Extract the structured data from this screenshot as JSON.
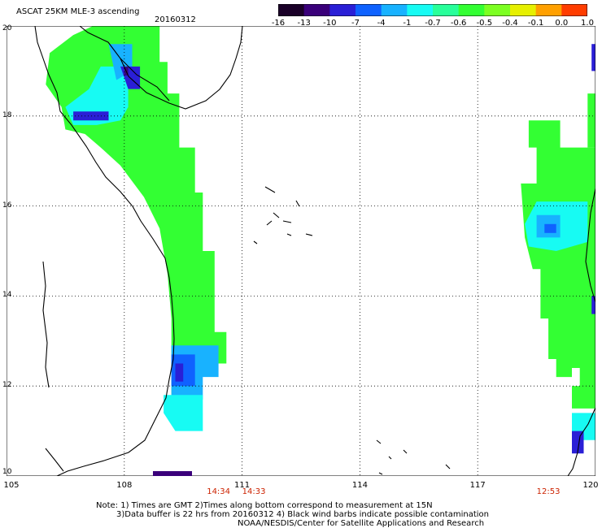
{
  "header": {
    "title": "ASCAT 25KM MLE-3 ascending",
    "date": "20160312"
  },
  "colorbar": {
    "colors": [
      "#1a0028",
      "#3a007a",
      "#2a1fd6",
      "#0f62ff",
      "#18b2ff",
      "#17fbf3",
      "#28ff9a",
      "#33ff33",
      "#7cff22",
      "#e6f000",
      "#ffa000",
      "#ff3d00"
    ],
    "ticks": [
      "-16",
      "-13",
      "-10",
      "-7",
      "-4",
      "-1",
      "-0.7",
      "-0.6",
      "-0.5",
      "-0.4",
      "-0.1",
      "0.0",
      "1.0"
    ]
  },
  "axes": {
    "x_ticks": [
      105,
      108,
      111,
      114,
      117,
      120
    ],
    "y_ticks": [
      10,
      12,
      14,
      16,
      18,
      20
    ],
    "x_labels": [
      "105",
      "108",
      "111",
      "114",
      "117",
      "120"
    ],
    "y_labels": [
      "10",
      "12",
      "14",
      "16",
      "18",
      "20"
    ],
    "xlim": [
      105,
      120
    ],
    "ylim": [
      10,
      20
    ]
  },
  "times": [
    {
      "label": "14:34",
      "lon": 110.4
    },
    {
      "label": "14:33",
      "lon": 111.3
    },
    {
      "label": "12:53",
      "lon": 118.8
    }
  ],
  "notes": {
    "line1": "Note: 1) Times are GMT 2)Times along bottom correspond to measurement at 15N",
    "line2": "3)Data buffer is 22 hrs from 20160312 4) Black wind barbs indicate possible contamination",
    "line3": "NOAA/NESDIS/Center for Satellite Applications and Research"
  },
  "colors": {
    "green": "#33ff33",
    "cyan": "#17fbf3",
    "lightblue": "#18b2ff",
    "blue": "#0f62ff",
    "navy": "#2a1fd6",
    "purple": "#3a007a"
  }
}
